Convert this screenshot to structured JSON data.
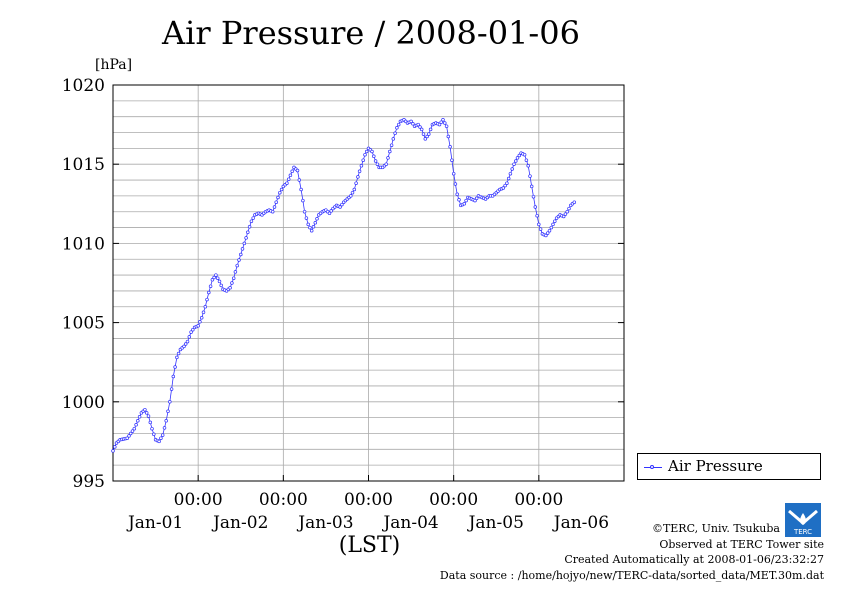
{
  "title": "Air Pressure / 2008-01-06",
  "credits": {
    "copyright": "©TERC, Univ. Tsukuba",
    "observed": "Observed at TERC Tower site",
    "created": "Created Automatically at 2008-01-06/23:32:27",
    "source": "Data source : /home/hojyo/new/TERC-data/sorted_data/MET.30m.dat"
  },
  "logo_text": "TERC",
  "colors": {
    "series": "#3333ff",
    "grid": "#aaaaaa",
    "axis": "#000000"
  },
  "chart_data": {
    "type": "line",
    "title": "Air Pressure / 2008-01-06",
    "ylabel": "[hPa]",
    "xlabel": "(LST)",
    "ylim": [
      995,
      1020
    ],
    "yticks": [
      995,
      1000,
      1005,
      1010,
      1015,
      1020
    ],
    "xlim": [
      0,
      144
    ],
    "x_unit": "hours from 2007-12-31 00:00 LST",
    "xticks": [
      {
        "x": 24,
        "time": "00:00",
        "date": "Jan-01"
      },
      {
        "x": 48,
        "time": "00:00",
        "date": "Jan-02"
      },
      {
        "x": 72,
        "time": "00:00",
        "date": "Jan-03"
      },
      {
        "x": 96,
        "time": "00:00",
        "date": "Jan-04"
      },
      {
        "x": 120,
        "time": "00:00",
        "date": "Jan-05"
      }
    ],
    "extra_date_labels": [
      {
        "x": 144,
        "date": "Jan-06"
      }
    ],
    "grid": true,
    "legend": {
      "position": "right",
      "entries": [
        "Air Pressure"
      ]
    },
    "series": [
      {
        "name": "Air Pressure",
        "anchors": [
          [
            0,
            996.9
          ],
          [
            1,
            997.4
          ],
          [
            2,
            997.6
          ],
          [
            4,
            997.7
          ],
          [
            6,
            998.3
          ],
          [
            8,
            999.3
          ],
          [
            9,
            999.5
          ],
          [
            10,
            999.1
          ],
          [
            11,
            998.3
          ],
          [
            12,
            997.6
          ],
          [
            13,
            997.5
          ],
          [
            14,
            997.9
          ],
          [
            15,
            998.8
          ],
          [
            16,
            1000.0
          ],
          [
            17,
            1001.6
          ],
          [
            18,
            1002.8
          ],
          [
            19,
            1003.3
          ],
          [
            20,
            1003.5
          ],
          [
            21,
            1003.8
          ],
          [
            22,
            1004.4
          ],
          [
            23,
            1004.7
          ],
          [
            24,
            1004.8
          ],
          [
            25,
            1005.3
          ],
          [
            26,
            1006.0
          ],
          [
            27,
            1006.9
          ],
          [
            28,
            1007.7
          ],
          [
            29,
            1008.0
          ],
          [
            30,
            1007.6
          ],
          [
            31,
            1007.1
          ],
          [
            32,
            1007.0
          ],
          [
            33,
            1007.2
          ],
          [
            34,
            1007.8
          ],
          [
            35,
            1008.6
          ],
          [
            36,
            1009.3
          ],
          [
            37,
            1010.0
          ],
          [
            38,
            1010.7
          ],
          [
            39,
            1011.4
          ],
          [
            40,
            1011.8
          ],
          [
            41,
            1011.9
          ],
          [
            42,
            1011.8
          ],
          [
            43,
            1012.0
          ],
          [
            44,
            1012.1
          ],
          [
            45,
            1012.0
          ],
          [
            46,
            1012.6
          ],
          [
            47,
            1013.2
          ],
          [
            48,
            1013.6
          ],
          [
            49,
            1013.8
          ],
          [
            50,
            1014.3
          ],
          [
            51,
            1014.8
          ],
          [
            52,
            1014.6
          ],
          [
            53,
            1013.4
          ],
          [
            54,
            1012.0
          ],
          [
            55,
            1011.2
          ],
          [
            56,
            1010.8
          ],
          [
            57,
            1011.3
          ],
          [
            58,
            1011.8
          ],
          [
            59,
            1012.0
          ],
          [
            60,
            1012.1
          ],
          [
            61,
            1011.9
          ],
          [
            62,
            1012.2
          ],
          [
            63,
            1012.4
          ],
          [
            64,
            1012.3
          ],
          [
            65,
            1012.6
          ],
          [
            66,
            1012.8
          ],
          [
            67,
            1013.0
          ],
          [
            68,
            1013.4
          ],
          [
            69,
            1014.2
          ],
          [
            70,
            1014.9
          ],
          [
            71,
            1015.6
          ],
          [
            72,
            1016.0
          ],
          [
            73,
            1015.8
          ],
          [
            74,
            1015.2
          ],
          [
            75,
            1014.8
          ],
          [
            76,
            1014.8
          ],
          [
            77,
            1015.0
          ],
          [
            78,
            1015.8
          ],
          [
            79,
            1016.6
          ],
          [
            80,
            1017.3
          ],
          [
            81,
            1017.7
          ],
          [
            82,
            1017.8
          ],
          [
            83,
            1017.6
          ],
          [
            84,
            1017.7
          ],
          [
            85,
            1017.4
          ],
          [
            86,
            1017.5
          ],
          [
            87,
            1017.2
          ],
          [
            88,
            1016.6
          ],
          [
            89,
            1016.9
          ],
          [
            90,
            1017.5
          ],
          [
            91,
            1017.6
          ],
          [
            92,
            1017.5
          ],
          [
            93,
            1017.8
          ],
          [
            94,
            1017.4
          ],
          [
            95,
            1016.1
          ],
          [
            96,
            1014.4
          ],
          [
            97,
            1013.1
          ],
          [
            98,
            1012.4
          ],
          [
            99,
            1012.5
          ],
          [
            100,
            1012.9
          ],
          [
            101,
            1012.8
          ],
          [
            102,
            1012.7
          ],
          [
            103,
            1013.0
          ],
          [
            104,
            1012.9
          ],
          [
            105,
            1012.8
          ],
          [
            106,
            1013.0
          ],
          [
            107,
            1013.0
          ],
          [
            108,
            1013.2
          ],
          [
            109,
            1013.4
          ],
          [
            110,
            1013.5
          ],
          [
            111,
            1013.8
          ],
          [
            112,
            1014.4
          ],
          [
            113,
            1015.0
          ],
          [
            114,
            1015.4
          ],
          [
            115,
            1015.7
          ],
          [
            116,
            1015.6
          ],
          [
            117,
            1014.9
          ],
          [
            118,
            1013.6
          ],
          [
            119,
            1012.3
          ],
          [
            120,
            1011.2
          ],
          [
            121,
            1010.6
          ],
          [
            122,
            1010.5
          ],
          [
            123,
            1010.8
          ],
          [
            124,
            1011.2
          ],
          [
            125,
            1011.6
          ],
          [
            126,
            1011.8
          ],
          [
            127,
            1011.7
          ],
          [
            128,
            1012.0
          ],
          [
            129,
            1012.4
          ],
          [
            130,
            1012.6
          ]
        ]
      }
    ]
  }
}
